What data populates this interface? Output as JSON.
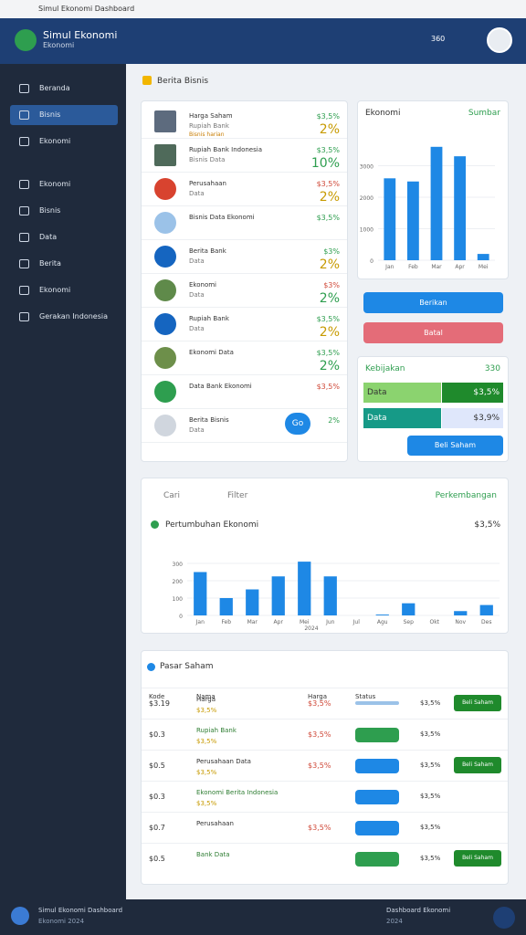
{
  "browser": {
    "tab": "Simul Ekonomi Dashboard"
  },
  "header": {
    "title": "Simul Ekonomi",
    "subtitle": "Ekonomi",
    "badge": "360"
  },
  "sidebar": {
    "items": [
      "Beranda",
      "Bisnis",
      "Ekonomi",
      "Ekonomi",
      "Bisnis",
      "Data",
      "Berita",
      "Ekonomi",
      "Gerakan Indonesia"
    ]
  },
  "news": {
    "title": "Berita Bisnis",
    "rows": [
      {
        "title": "Harga Saham",
        "sub": "Rupiah Bank",
        "meta": "Bisnis harian",
        "value": "$3,5%",
        "change": "2%"
      },
      {
        "title": "Rupiah Bank Indonesia",
        "sub": "Bisnis Data",
        "value": "$3,5%",
        "change": "10%"
      },
      {
        "title": "Perusahaan",
        "sub": "Data",
        "value": "$3,5%",
        "change": "2%"
      },
      {
        "title": "Bisnis Data Ekonomi",
        "value": "$3,5%"
      },
      {
        "title": "Berita Bank",
        "sub": "Data",
        "value": "$3%",
        "change": "2%"
      },
      {
        "title": "Ekonomi",
        "sub": "Data",
        "value": "$3%",
        "change": "2%"
      },
      {
        "title": "Rupiah Bank",
        "sub": "Data",
        "value": "$3,5%",
        "change": "2%"
      },
      {
        "title": "Ekonomi Data",
        "value": "$3,5%",
        "change": "2%"
      },
      {
        "title": "Data Bank Ekonomi",
        "value": "$3,5%"
      },
      {
        "title": "Berita Bisnis",
        "sub": "Data",
        "value": "2%",
        "button": "Go"
      }
    ]
  },
  "chart1": {
    "title": "Ekonomi",
    "link": "Sumbar",
    "categories": [
      "Jan",
      "Feb",
      "Mar",
      "Apr",
      "Mei"
    ],
    "values": [
      2600,
      2500,
      3600,
      3300,
      200
    ],
    "ylim": [
      0,
      4000
    ],
    "yticks": [
      0,
      1000,
      2000,
      3000
    ],
    "color": "#1e88e5"
  },
  "actions": {
    "primary": "Berikan",
    "secondary": "Batal"
  },
  "market": {
    "title": "Kebijakan",
    "badge": "330",
    "cells": [
      "Data",
      "$3,5%",
      "Data",
      "$3,9%"
    ],
    "button": "Beli Saham"
  },
  "chart2": {
    "search": "Cari",
    "filter": "Filter",
    "link": "Perkembangan",
    "title": "Pertumbuhan Ekonomi",
    "total": "$3,5%",
    "xlabel": "2024",
    "categories": [
      "Jan",
      "Feb",
      "Mar",
      "Apr",
      "Mei",
      "Jun",
      "Jul",
      "Agu",
      "Sep",
      "Okt",
      "Nov",
      "Des"
    ],
    "values": [
      250,
      100,
      150,
      225,
      310,
      225,
      0,
      5,
      70,
      0,
      25,
      60
    ],
    "ylim": [
      0,
      400
    ],
    "yticks": [
      0,
      100,
      200,
      300
    ],
    "color": "#1e88e5"
  },
  "stocks": {
    "title": "Pasar Saham",
    "headers": [
      "Kode",
      "Nama",
      "Harga",
      "Status"
    ],
    "rows": [
      {
        "code": "$3.19",
        "name": "Harga",
        "rating": "$3,5%",
        "price": "$3,5%",
        "change": "$3,5%",
        "action": "Beli Saham"
      },
      {
        "code": "$0.3",
        "name": "Rupiah Bank",
        "rating": "$3,5%",
        "price": "$3,5%",
        "change": "$3,5%"
      },
      {
        "code": "$0.5",
        "name": "Perusahaan Data",
        "rating": "$3,5%",
        "price": "$3,5%",
        "change": "$3,5%",
        "action": "Beli Saham"
      },
      {
        "code": "$0.3",
        "name": "Ekonomi Berita Indonesia",
        "rating": "$3,5%",
        "change": "$3,5%"
      },
      {
        "code": "$0.7",
        "name": "Perusahaan",
        "price": "$3,5%",
        "change": "$3,5%"
      },
      {
        "code": "$0.5",
        "name": "Bank Data",
        "change": "$3,5%",
        "action": "Beli Saham"
      }
    ]
  },
  "footer": {
    "title": "Simul Ekonomi Dashboard",
    "sub": "Ekonomi 2024",
    "right": "Dashboard Ekonomi",
    "right_sub": "2024"
  }
}
